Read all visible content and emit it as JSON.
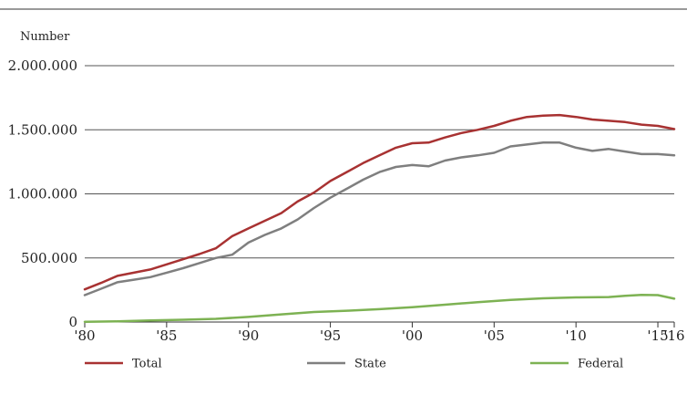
{
  "chart_data": {
    "type": "line",
    "title": "",
    "unit_label": "Number",
    "xlabel": "",
    "ylabel": "",
    "xlim": [
      1980,
      2016
    ],
    "ylim": [
      0,
      2000000
    ],
    "x_ticks": [
      {
        "value": 1980,
        "label": "'80"
      },
      {
        "value": 1985,
        "label": "'85"
      },
      {
        "value": 1990,
        "label": "'90"
      },
      {
        "value": 1995,
        "label": "'95"
      },
      {
        "value": 2000,
        "label": "'00"
      },
      {
        "value": 2005,
        "label": "'05"
      },
      {
        "value": 2010,
        "label": "'10"
      },
      {
        "value": 2015,
        "label": "'15"
      },
      {
        "value": 2016,
        "label": "'16"
      }
    ],
    "y_ticks": [
      {
        "value": 0,
        "label": "0"
      },
      {
        "value": 500000,
        "label": "500.000"
      },
      {
        "value": 1000000,
        "label": "1.000.000"
      },
      {
        "value": 1500000,
        "label": "1.500.000"
      },
      {
        "value": 2000000,
        "label": "2.000.000"
      }
    ],
    "grid": true,
    "legend_position": "bottom",
    "series": [
      {
        "name": "Total",
        "color": "#a83232",
        "points": [
          [
            1980,
            255000
          ],
          [
            1981,
            305000
          ],
          [
            1982,
            360000
          ],
          [
            1983,
            385000
          ],
          [
            1984,
            410000
          ],
          [
            1985,
            450000
          ],
          [
            1986,
            490000
          ],
          [
            1987,
            530000
          ],
          [
            1988,
            575000
          ],
          [
            1989,
            670000
          ],
          [
            1990,
            730000
          ],
          [
            1991,
            790000
          ],
          [
            1992,
            850000
          ],
          [
            1993,
            940000
          ],
          [
            1994,
            1010000
          ],
          [
            1995,
            1100000
          ],
          [
            1996,
            1170000
          ],
          [
            1997,
            1240000
          ],
          [
            1998,
            1300000
          ],
          [
            1999,
            1360000
          ],
          [
            2000,
            1395000
          ],
          [
            2001,
            1400000
          ],
          [
            2002,
            1440000
          ],
          [
            2003,
            1475000
          ],
          [
            2004,
            1500000
          ],
          [
            2005,
            1530000
          ],
          [
            2006,
            1570000
          ],
          [
            2007,
            1600000
          ],
          [
            2008,
            1610000
          ],
          [
            2009,
            1615000
          ],
          [
            2010,
            1600000
          ],
          [
            2011,
            1580000
          ],
          [
            2012,
            1570000
          ],
          [
            2013,
            1560000
          ],
          [
            2014,
            1540000
          ],
          [
            2015,
            1530000
          ],
          [
            2016,
            1505000
          ]
        ]
      },
      {
        "name": "State",
        "color": "#7f7f7f",
        "points": [
          [
            1980,
            210000
          ],
          [
            1981,
            260000
          ],
          [
            1982,
            310000
          ],
          [
            1983,
            330000
          ],
          [
            1984,
            350000
          ],
          [
            1985,
            385000
          ],
          [
            1986,
            420000
          ],
          [
            1987,
            460000
          ],
          [
            1988,
            500000
          ],
          [
            1989,
            525000
          ],
          [
            1990,
            620000
          ],
          [
            1991,
            680000
          ],
          [
            1992,
            730000
          ],
          [
            1993,
            800000
          ],
          [
            1994,
            890000
          ],
          [
            1995,
            970000
          ],
          [
            1996,
            1040000
          ],
          [
            1997,
            1110000
          ],
          [
            1998,
            1170000
          ],
          [
            1999,
            1210000
          ],
          [
            2000,
            1225000
          ],
          [
            2001,
            1215000
          ],
          [
            2002,
            1260000
          ],
          [
            2003,
            1285000
          ],
          [
            2004,
            1300000
          ],
          [
            2005,
            1320000
          ],
          [
            2006,
            1370000
          ],
          [
            2007,
            1385000
          ],
          [
            2008,
            1400000
          ],
          [
            2009,
            1400000
          ],
          [
            2010,
            1360000
          ],
          [
            2011,
            1335000
          ],
          [
            2012,
            1350000
          ],
          [
            2013,
            1330000
          ],
          [
            2014,
            1310000
          ],
          [
            2015,
            1310000
          ],
          [
            2016,
            1300000
          ]
        ]
      },
      {
        "name": "Federal",
        "color": "#7db253",
        "points": [
          [
            1980,
            2000
          ],
          [
            1982,
            5000
          ],
          [
            1984,
            12000
          ],
          [
            1986,
            18000
          ],
          [
            1988,
            25000
          ],
          [
            1990,
            40000
          ],
          [
            1992,
            60000
          ],
          [
            1994,
            78000
          ],
          [
            1996,
            88000
          ],
          [
            1998,
            100000
          ],
          [
            2000,
            115000
          ],
          [
            2002,
            135000
          ],
          [
            2004,
            155000
          ],
          [
            2006,
            172000
          ],
          [
            2008,
            185000
          ],
          [
            2010,
            192000
          ],
          [
            2012,
            195000
          ],
          [
            2013,
            205000
          ],
          [
            2014,
            212000
          ],
          [
            2015,
            210000
          ],
          [
            2016,
            182000
          ]
        ]
      }
    ]
  }
}
